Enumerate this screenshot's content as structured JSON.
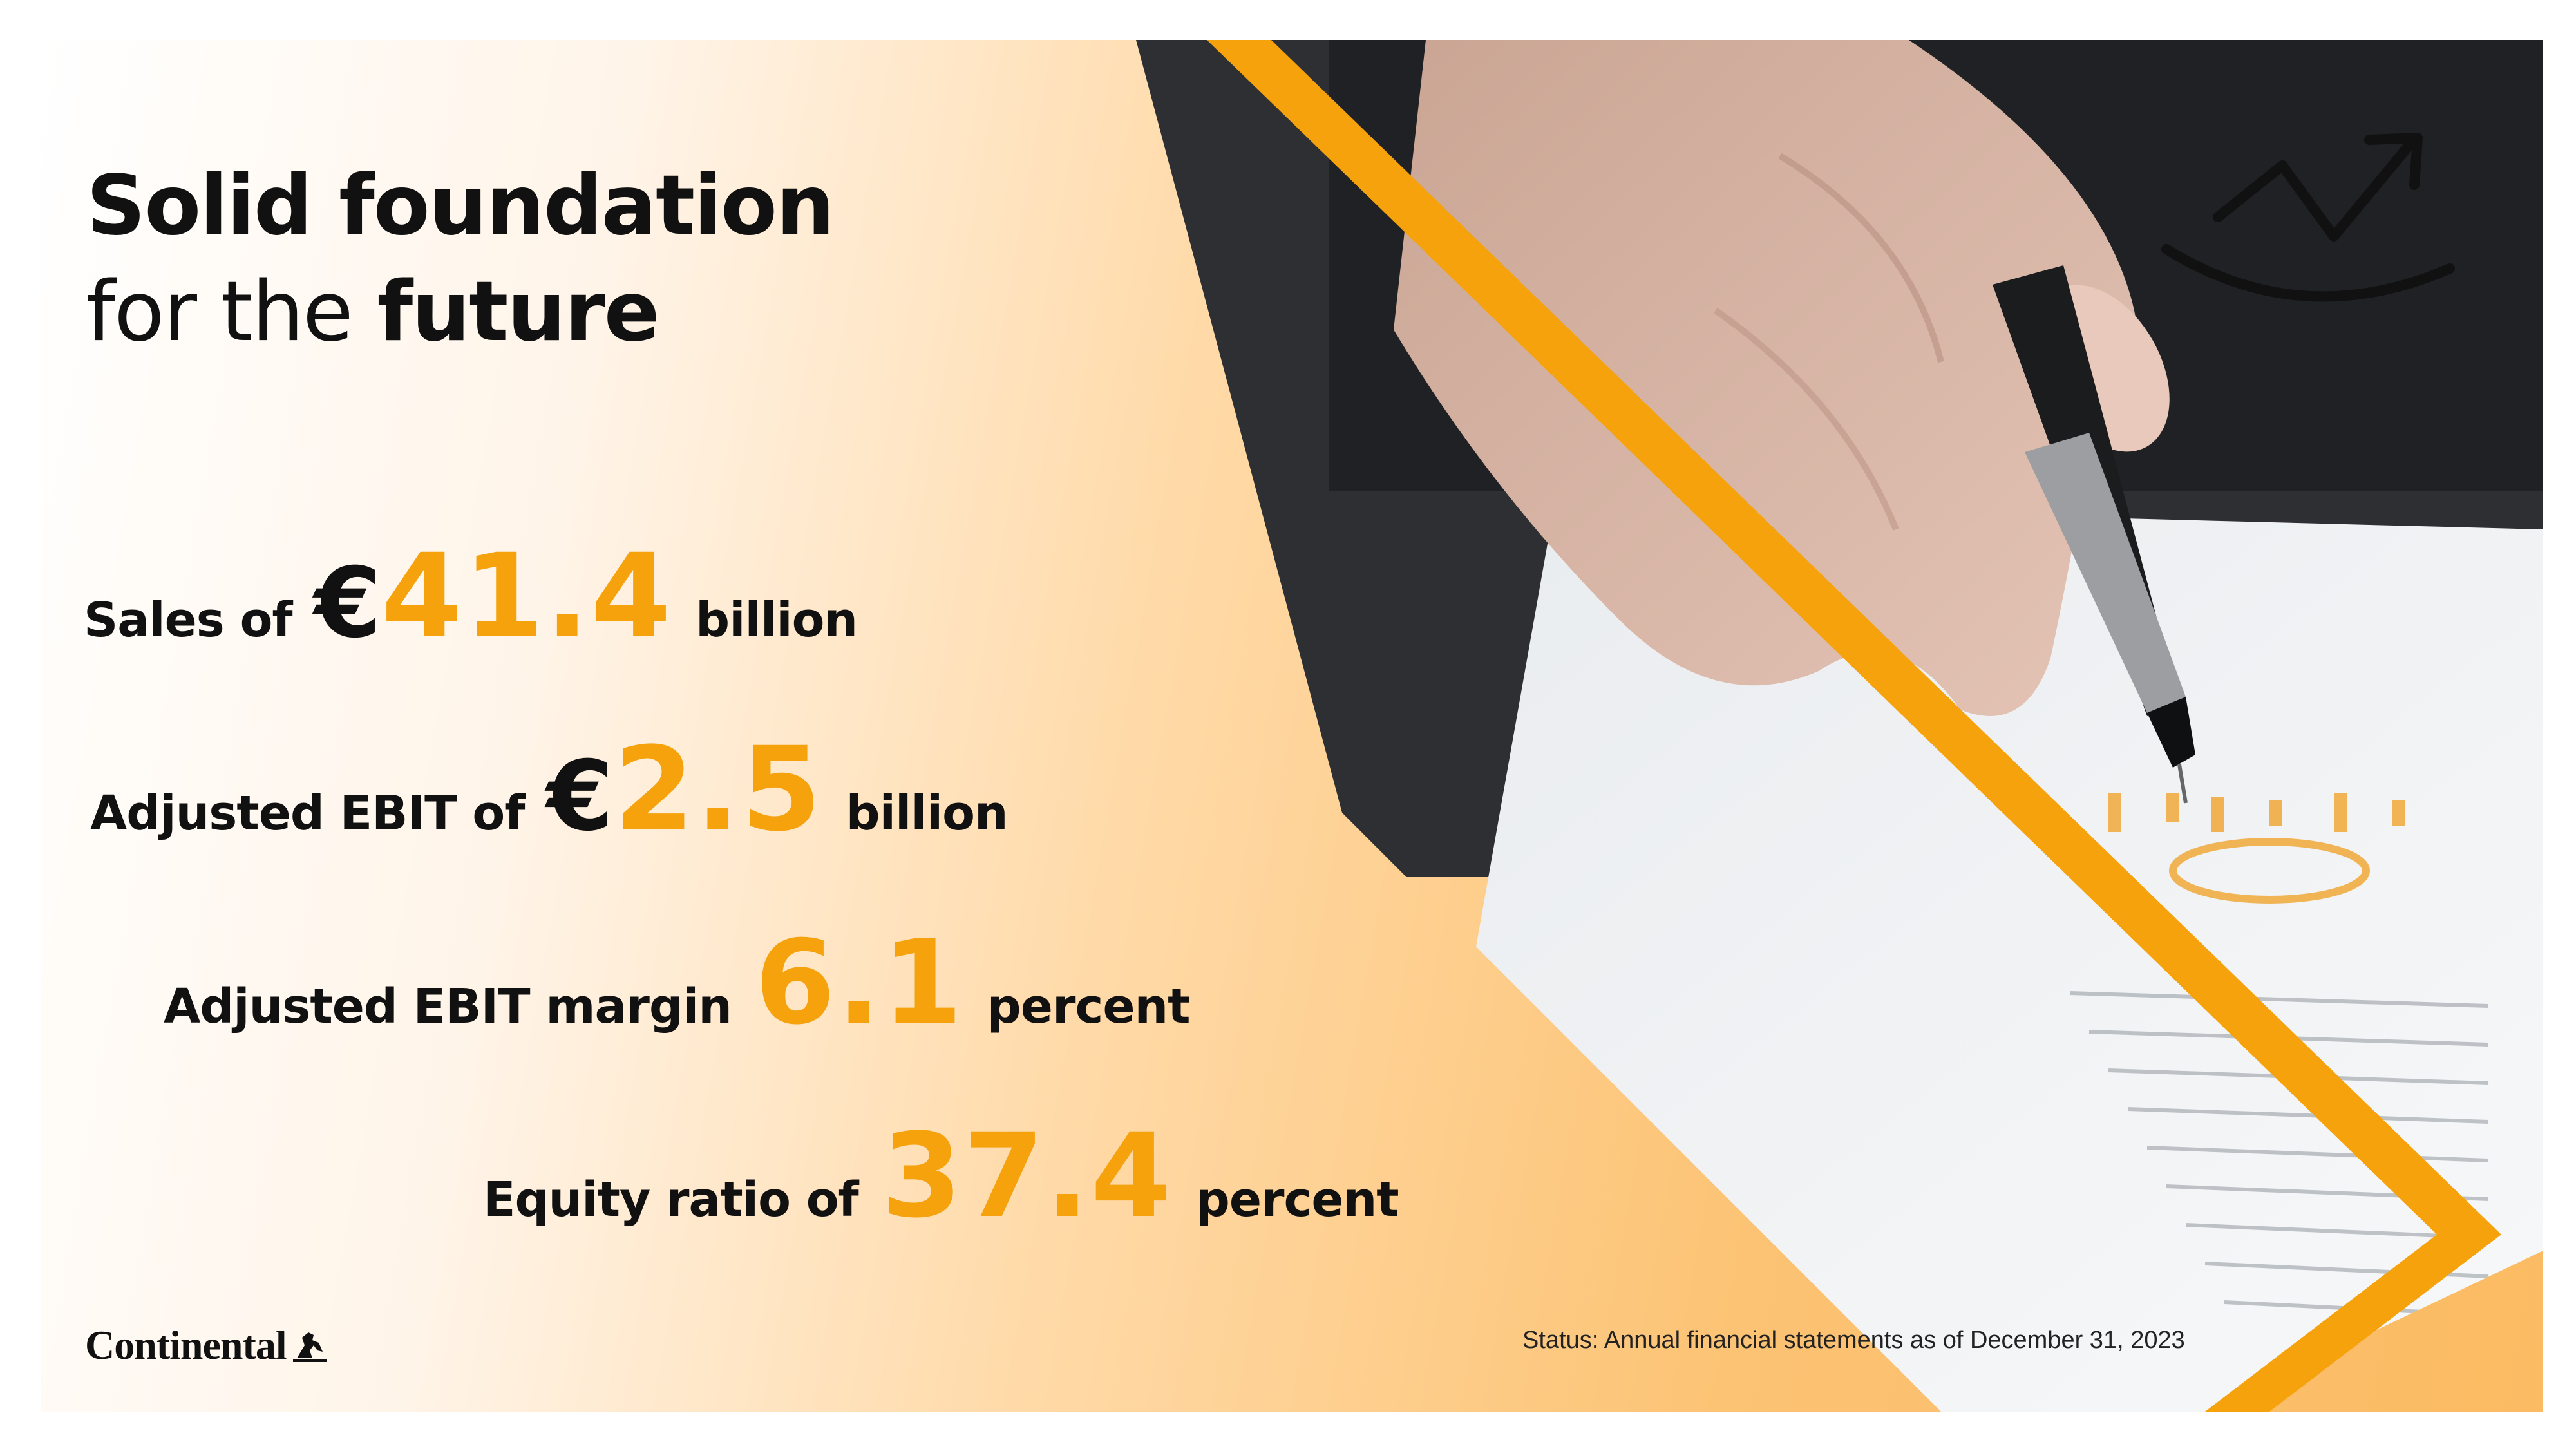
{
  "title": {
    "line1": "Solid foundation",
    "line2_regular": "for the",
    "line2_bold": "future"
  },
  "kpis": [
    {
      "label": "Sales of",
      "currency": "€",
      "value": "41.4",
      "unit": "billion"
    },
    {
      "label": "Adjusted EBIT of",
      "currency": "€",
      "value": "2.5",
      "unit": "billion"
    },
    {
      "label": "Adjusted EBIT margin",
      "currency": "",
      "value": "6.1",
      "unit": "percent"
    },
    {
      "label": "Equity ratio of",
      "currency": "",
      "value": "37.4",
      "unit": "percent"
    }
  ],
  "logo": {
    "brand": "Continental"
  },
  "status": "Status: Annual financial statements as of December 31, 2023",
  "icons": {
    "trend": "trend-arrow-icon",
    "logo_horse": "horse-icon"
  },
  "colors": {
    "accent": "#f5a20d",
    "background_orange": "#fbbb63",
    "text": "#111111"
  }
}
